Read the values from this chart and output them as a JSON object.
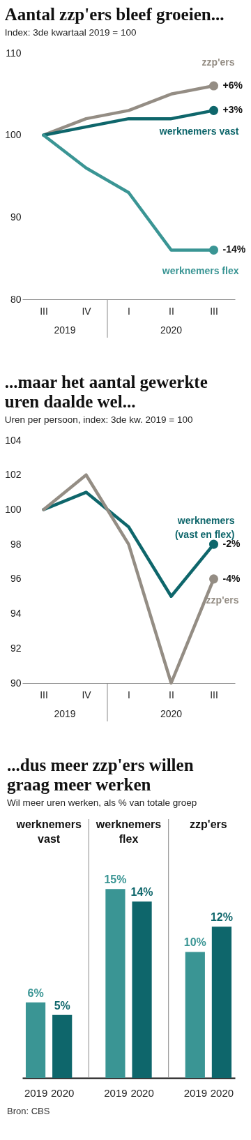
{
  "chart_data": [
    {
      "type": "line",
      "title": "Aantal zzp'ers bleef groeien...",
      "subtitle": "Index: 3de kwartaal 2019 = 100",
      "categories": [
        "III",
        "IV",
        "I",
        "II",
        "III"
      ],
      "ylim": [
        80,
        110
      ],
      "yticks": [
        80,
        90,
        100,
        110
      ],
      "grid": false,
      "line_style": "solid",
      "series": [
        {
          "name": "zzp'ers",
          "color": "#948d84",
          "values": [
            100,
            102,
            103,
            105,
            106
          ]
        },
        {
          "name": "werknemers vast",
          "color": "#0e666b",
          "values": [
            100,
            101,
            102,
            102,
            103
          ]
        },
        {
          "name": "werknemers flex",
          "color": "#3a9594",
          "values": [
            100,
            96,
            93,
            86,
            86
          ]
        }
      ],
      "annotations": [
        "2019",
        "2020",
        "+6%",
        "+3%",
        "-14%"
      ]
    },
    {
      "type": "line",
      "title": "...maar het aantal gewerkte uren daalde wel...",
      "subtitle": "Uren per persoon, index: 3de kw. 2019 = 100",
      "categories": [
        "III",
        "IV",
        "I",
        "II",
        "III"
      ],
      "ylim": [
        90,
        104
      ],
      "yticks": [
        90,
        92,
        94,
        96,
        98,
        100,
        102,
        104
      ],
      "grid": false,
      "line_style": "solid",
      "series": [
        {
          "name": "werknemers (vast en flex)",
          "color": "#0e666b",
          "values": [
            100,
            101,
            99,
            95,
            98
          ]
        },
        {
          "name": "zzp'ers",
          "color": "#948d84",
          "values": [
            100,
            102,
            98,
            90,
            96
          ]
        }
      ],
      "annotations": [
        "2019",
        "2020",
        "-2%",
        "-4%"
      ]
    },
    {
      "type": "bar",
      "title": "...dus meer zzp'ers willen graag meer werken",
      "subtitle": "Wil meer uren werken, als % van totale groep",
      "categories": [
        "2019",
        "2020",
        "2019",
        "2020",
        "2019",
        "2020"
      ],
      "values": [
        6,
        5,
        15,
        14,
        10,
        12
      ],
      "colors": [
        "#3a9594",
        "#0e666b",
        "#3a9594",
        "#0e666b",
        "#3a9594",
        "#0e666b"
      ],
      "value_labels": [
        "6%",
        "5%",
        "15%",
        "14%",
        "10%",
        "12%"
      ],
      "grid": false,
      "annotations": [
        "werknemers vast",
        "werknemers flex",
        "zzp'ers",
        "Bron: CBS"
      ]
    }
  ]
}
